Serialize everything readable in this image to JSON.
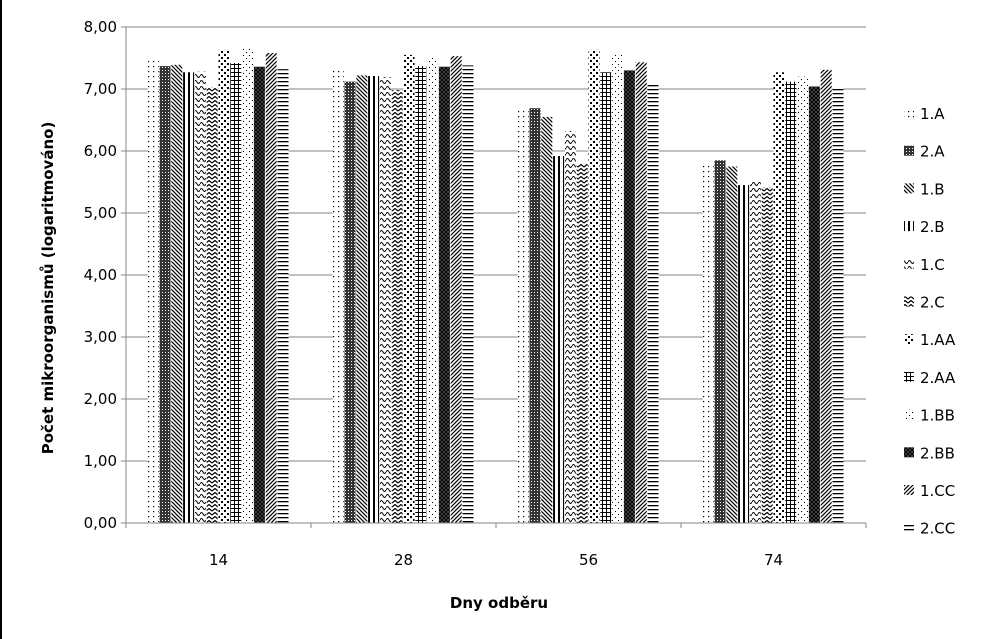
{
  "chart_data": {
    "type": "bar",
    "title": "",
    "xlabel": "Dny odběru",
    "ylabel": "Počet mikroorganismů (logaritmováno)",
    "ylim": [
      0,
      8
    ],
    "ytick_step": 1,
    "ytick_labels": [
      "0,00",
      "1,00",
      "2,00",
      "3,00",
      "4,00",
      "5,00",
      "6,00",
      "7,00",
      "8,00"
    ],
    "grid": true,
    "legend_position": "right",
    "categories": [
      "14",
      "28",
      "56",
      "74"
    ],
    "series": [
      {
        "name": "1.A",
        "pattern": "dots",
        "values": [
          7.45,
          7.3,
          6.7,
          5.8
        ]
      },
      {
        "name": "2.A",
        "pattern": "dense",
        "values": [
          7.37,
          7.12,
          6.69,
          5.85
        ]
      },
      {
        "name": "1.B",
        "pattern": "diag-down",
        "values": [
          7.39,
          7.22,
          6.55,
          5.75
        ]
      },
      {
        "name": "2.B",
        "pattern": "vertical",
        "values": [
          7.27,
          7.21,
          5.92,
          5.45
        ]
      },
      {
        "name": "1.C",
        "pattern": "wave",
        "values": [
          7.28,
          7.19,
          6.32,
          5.5
        ]
      },
      {
        "name": "2.C",
        "pattern": "zigzag",
        "values": [
          7.03,
          6.98,
          5.8,
          5.42
        ]
      },
      {
        "name": "1.AA",
        "pattern": "checker",
        "values": [
          7.63,
          7.55,
          7.63,
          7.27
        ]
      },
      {
        "name": "2.AA",
        "pattern": "grid",
        "values": [
          7.42,
          7.37,
          7.27,
          7.12
        ]
      },
      {
        "name": "1.BB",
        "pattern": "dots-light",
        "values": [
          7.65,
          7.5,
          7.57,
          7.2
        ]
      },
      {
        "name": "2.BB",
        "pattern": "crosshatch",
        "values": [
          7.36,
          7.36,
          7.3,
          7.04
        ]
      },
      {
        "name": "1.CC",
        "pattern": "diag-up",
        "values": [
          7.58,
          7.53,
          7.43,
          7.31
        ]
      },
      {
        "name": "2.CC",
        "pattern": "horizontal",
        "values": [
          7.32,
          7.38,
          7.07,
          7.02
        ]
      }
    ]
  }
}
